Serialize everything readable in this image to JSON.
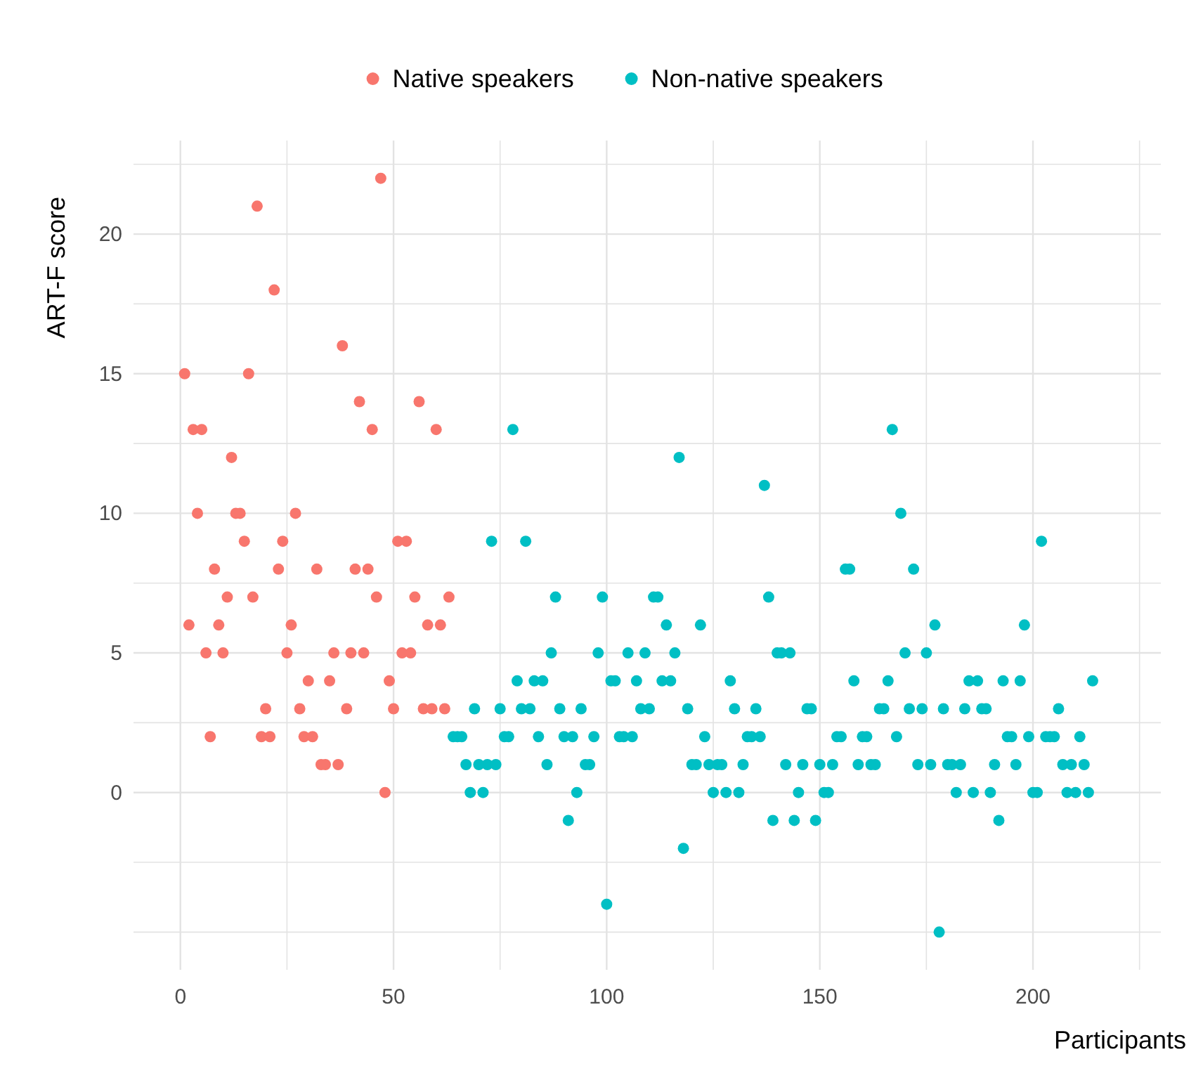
{
  "chart_data": {
    "type": "scatter",
    "xlabel": "Participants",
    "ylabel": "ART-F score",
    "legend": "top",
    "grid": true,
    "marker": "circle",
    "xlim": [
      -11,
      230
    ],
    "ylim": [
      -6.35,
      23.35
    ],
    "xticks": [
      0,
      {
        "value": 25,
        "label": null
      },
      50,
      {
        "value": 75,
        "label": null
      },
      100,
      {
        "value": 125,
        "label": null
      },
      150,
      {
        "value": 175,
        "label": null
      },
      200,
      {
        "value": 225,
        "label": null
      }
    ],
    "yticks": [
      {
        "value": -5,
        "label": null
      },
      {
        "value": -2.5,
        "label": null
      },
      0,
      {
        "value": 2.5,
        "label": null
      },
      5,
      {
        "value": 7.5,
        "label": null
      },
      10,
      {
        "value": 12.5,
        "label": null
      },
      15,
      {
        "value": 17.5,
        "label": null
      },
      20,
      {
        "value": 22.5,
        "label": null
      }
    ],
    "series": [
      {
        "name": "Native speakers",
        "color": "#f8766d",
        "x": [
          1,
          2,
          3,
          4,
          5,
          6,
          7,
          8,
          9,
          10,
          11,
          12,
          13,
          14,
          15,
          16,
          17,
          18,
          19,
          20,
          21,
          22,
          23,
          24,
          25,
          26,
          27,
          28,
          29,
          30,
          31,
          32,
          33,
          34,
          35,
          36,
          37,
          38,
          39,
          40,
          41,
          42,
          43,
          44,
          45,
          46,
          47,
          48,
          49,
          50,
          51,
          52,
          53,
          54,
          55,
          56,
          57,
          58,
          59,
          60,
          61,
          62,
          63
        ],
        "values": [
          15,
          6,
          13,
          10,
          13,
          5,
          2,
          8,
          6,
          5,
          7,
          12,
          10,
          10,
          9,
          15,
          7,
          21,
          2,
          3,
          2,
          18,
          8,
          9,
          5,
          6,
          10,
          3,
          2,
          4,
          2,
          8,
          1,
          1,
          4,
          5,
          1,
          16,
          3,
          5,
          8,
          14,
          5,
          8,
          13,
          7,
          22,
          0,
          4,
          3,
          9,
          5,
          9,
          5,
          7,
          14,
          3,
          6,
          3,
          13,
          6,
          3,
          7
        ]
      },
      {
        "name": "Non-native speakers",
        "color": "#00bfc4",
        "x": [
          64,
          65,
          66,
          67,
          68,
          69,
          70,
          71,
          72,
          73,
          74,
          75,
          76,
          77,
          78,
          79,
          80,
          81,
          82,
          83,
          84,
          85,
          86,
          87,
          88,
          89,
          90,
          91,
          92,
          93,
          94,
          95,
          96,
          97,
          98,
          99,
          100,
          101,
          102,
          103,
          104,
          105,
          106,
          107,
          108,
          109,
          110,
          111,
          112,
          113,
          114,
          115,
          116,
          117,
          118,
          119,
          120,
          121,
          122,
          123,
          124,
          125,
          126,
          127,
          128,
          129,
          130,
          131,
          132,
          133,
          134,
          135,
          136,
          137,
          138,
          139,
          140,
          141,
          142,
          143,
          144,
          145,
          146,
          147,
          148,
          149,
          150,
          151,
          152,
          153,
          154,
          155,
          156,
          157,
          158,
          159,
          160,
          161,
          162,
          163,
          164,
          165,
          166,
          167,
          168,
          169,
          170,
          171,
          172,
          173,
          174,
          175,
          176,
          177,
          178,
          179,
          180,
          181,
          182,
          183,
          184,
          185,
          186,
          187,
          188,
          189,
          190,
          191,
          192,
          193,
          194,
          195,
          196,
          197,
          198,
          199,
          200,
          201,
          202,
          203,
          204,
          205,
          206,
          207,
          208,
          209,
          210,
          211,
          212,
          213,
          214
        ],
        "values": [
          2,
          2,
          2,
          1,
          0,
          3,
          1,
          0,
          1,
          9,
          1,
          3,
          2,
          2,
          13,
          4,
          3,
          9,
          3,
          4,
          2,
          4,
          1,
          5,
          7,
          3,
          2,
          -1,
          2,
          0,
          3,
          1,
          1,
          2,
          5,
          7,
          -4,
          4,
          4,
          2,
          2,
          5,
          2,
          4,
          3,
          5,
          3,
          7,
          7,
          4,
          6,
          4,
          5,
          12,
          -2,
          3,
          1,
          1,
          6,
          2,
          1,
          0,
          1,
          1,
          0,
          4,
          3,
          0,
          1,
          2,
          2,
          3,
          2,
          11,
          7,
          -1,
          5,
          5,
          1,
          5,
          -1,
          0,
          1,
          3,
          3,
          -1,
          1,
          0,
          0,
          1,
          2,
          2,
          8,
          8,
          4,
          1,
          2,
          2,
          1,
          1,
          3,
          3,
          4,
          13,
          2,
          10,
          5,
          3,
          8,
          1,
          3,
          5,
          1,
          6,
          -5,
          3,
          1,
          1,
          0,
          1,
          3,
          4,
          0,
          4,
          3,
          3,
          0,
          1,
          -1,
          4,
          2,
          2,
          1,
          4,
          6,
          2,
          0,
          0,
          9,
          2,
          2,
          2,
          3,
          1,
          0,
          1,
          0,
          2,
          1,
          0,
          4
        ]
      }
    ]
  }
}
